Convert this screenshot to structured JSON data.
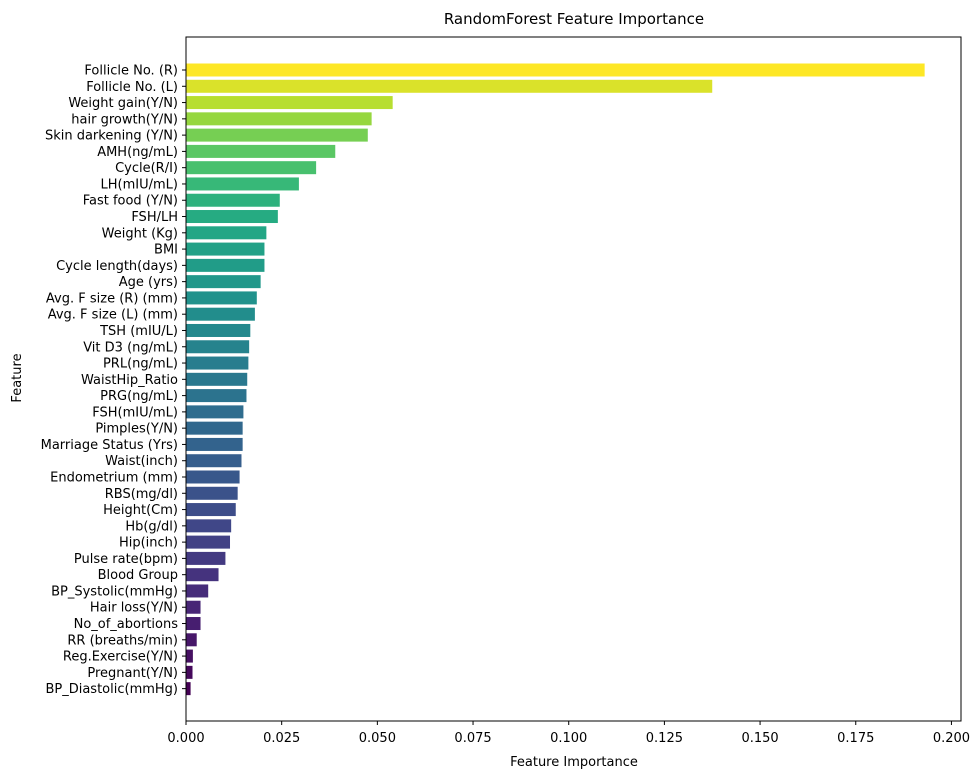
{
  "chart_data": {
    "type": "bar",
    "orientation": "horizontal",
    "title": "RandomForest Feature Importance",
    "xlabel": "Feature Importance",
    "ylabel": "Feature",
    "xlim": [
      0,
      0.2025
    ],
    "xticks": [
      "0.000",
      "0.025",
      "0.050",
      "0.075",
      "0.100",
      "0.125",
      "0.150",
      "0.175",
      "0.200"
    ],
    "xtick_values": [
      0,
      0.025,
      0.05,
      0.075,
      0.1,
      0.125,
      0.15,
      0.175,
      0.2
    ],
    "grid": false,
    "colormap": "viridis",
    "categories": [
      "Follicle No. (R)",
      "Follicle No. (L)",
      "Weight gain(Y/N)",
      "hair growth(Y/N)",
      "Skin darkening (Y/N)",
      "AMH(ng/mL)",
      "Cycle(R/I)",
      "LH(mIU/mL)",
      "Fast food (Y/N)",
      "FSH/LH",
      "Weight (Kg)",
      "BMI",
      "Cycle length(days)",
      "Age (yrs)",
      "Avg. F size (R) (mm)",
      "Avg. F size (L) (mm)",
      "TSH (mIU/L)",
      "Vit D3 (ng/mL)",
      "PRL(ng/mL)",
      "WaistHip_Ratio",
      "PRG(ng/mL)",
      "FSH(mIU/mL)",
      "Pimples(Y/N)",
      "Marriage Status (Yrs)",
      "Waist(inch)",
      "Endometrium (mm)",
      "RBS(mg/dl)",
      "Height(Cm)",
      "Hb(g/dl)",
      "Hip(inch)",
      "Pulse rate(bpm)",
      "Blood Group",
      "BP_Systolic(mmHg)",
      "Hair loss(Y/N)",
      "No_of_abortions",
      "RR (breaths/min)",
      "Reg.Exercise(Y/N)",
      "Pregnant(Y/N)",
      "BP_Diastolic(mmHg)"
    ],
    "values": [
      0.193,
      0.1375,
      0.054,
      0.0485,
      0.0475,
      0.039,
      0.034,
      0.0295,
      0.0245,
      0.024,
      0.021,
      0.0205,
      0.0205,
      0.0195,
      0.0185,
      0.018,
      0.0168,
      0.0165,
      0.0163,
      0.016,
      0.0158,
      0.015,
      0.0148,
      0.0148,
      0.0145,
      0.014,
      0.0135,
      0.013,
      0.0118,
      0.0115,
      0.0103,
      0.0085,
      0.0058,
      0.0038,
      0.0038,
      0.0028,
      0.0018,
      0.0017,
      0.0012
    ]
  }
}
